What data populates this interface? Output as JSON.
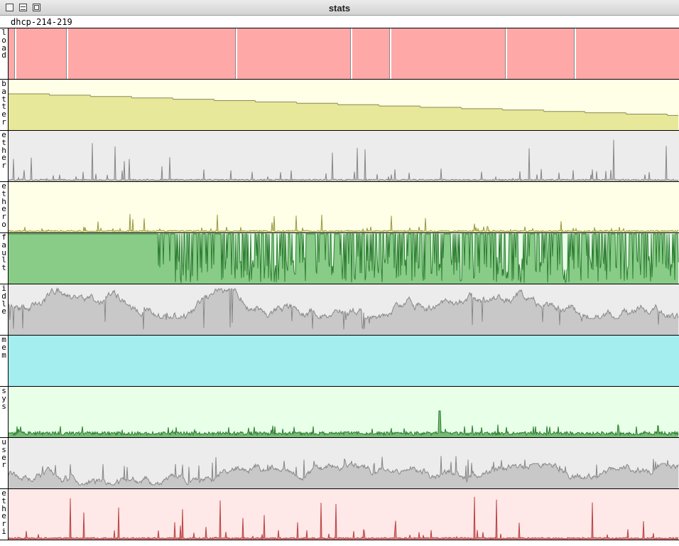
{
  "window": {
    "title": "stats"
  },
  "host": "dhcp-214-219",
  "rows": [
    {
      "key": "load",
      "label": "load",
      "bg": "#ffa8a8",
      "line": "#ffffff",
      "fill": "#ffa8a8",
      "kind": "gaps"
    },
    {
      "key": "batter",
      "label": "batter",
      "bg": "#ffffe8",
      "line": "#888855",
      "fill": "#e8e89a",
      "kind": "step"
    },
    {
      "key": "ether",
      "label": "ether",
      "bg": "#ececec",
      "line": "#888888",
      "fill": "#cccccc",
      "kind": "spike"
    },
    {
      "key": "ethero",
      "label": "ethero",
      "bg": "#ffffe8",
      "line": "#999944",
      "fill": "#e0e0a0",
      "kind": "spike-low"
    },
    {
      "key": "fault",
      "label": "fault",
      "bg": "#e8ffe8",
      "line": "#2e7d32",
      "fill": "#88cc88",
      "kind": "fault"
    },
    {
      "key": "idle",
      "label": "idle",
      "bg": "#ececec",
      "line": "#888888",
      "fill": "#c8c8c8",
      "kind": "idle"
    },
    {
      "key": "mem",
      "label": "mem",
      "bg": "#a4eef0",
      "line": "#88cccc",
      "fill": "#a4eef0",
      "kind": "flat"
    },
    {
      "key": "sys",
      "label": "sys",
      "bg": "#e8ffe8",
      "line": "#2e7d32",
      "fill": "#77bb77",
      "kind": "sys"
    },
    {
      "key": "user",
      "label": "user",
      "bg": "#ececec",
      "line": "#888888",
      "fill": "#c8c8c8",
      "kind": "user"
    },
    {
      "key": "etheri",
      "label": "etheri",
      "bg": "#ffe8e8",
      "line": "#bb4444",
      "fill": "#dd8888",
      "kind": "spike-red"
    }
  ]
}
